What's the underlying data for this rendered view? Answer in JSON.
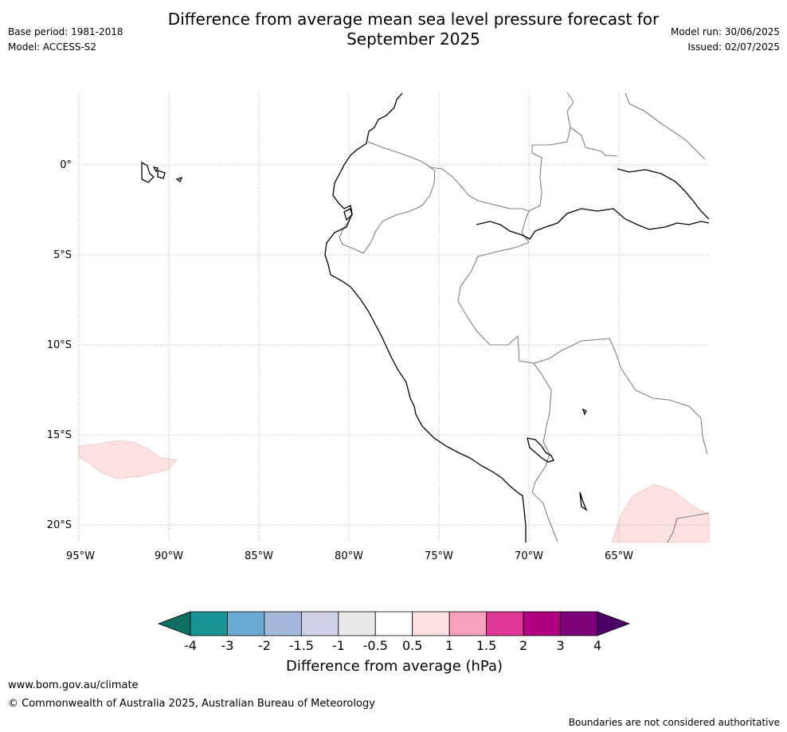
{
  "title_line1": "Difference from average mean sea level pressure forecast for",
  "title_line2": "September 2025",
  "meta_left": {
    "base_period": "Base period: 1981-2018",
    "model": "Model: ACCESS-S2"
  },
  "meta_right": {
    "model_run": "Model run: 30/06/2025",
    "issued": "Issued: 02/07/2025"
  },
  "map": {
    "lat_labels": [
      "0°",
      "5°S",
      "10°S",
      "15°S",
      "20°S"
    ],
    "lon_labels": [
      "95°W",
      "90°W",
      "85°W",
      "80°W",
      "75°W",
      "70°W",
      "65°W"
    ],
    "anomaly_color": "#fde0e0"
  },
  "colorbar": {
    "title": "Difference from average (hPa)",
    "tick_labels": [
      "-4",
      "-3",
      "-2",
      "-1.5",
      "-1",
      "-0.5",
      "0.5",
      "1",
      "1.5",
      "2",
      "3",
      "4"
    ],
    "colors": [
      "#0f6f62",
      "#1a9397",
      "#6babd3",
      "#a6b8db",
      "#cfd2e7",
      "#e8e7ea",
      "#ffffff",
      "#fde0e0",
      "#f8a1bd",
      "#dd3797",
      "#ae007f",
      "#7c0078",
      "#4b0066"
    ]
  },
  "footer": {
    "url": "www.bom.gov.au/climate",
    "copyright": "© Commonwealth of Australia 2025, Australian Bureau of Meteorology",
    "disclaimer": "Boundaries are not considered authoritative"
  }
}
